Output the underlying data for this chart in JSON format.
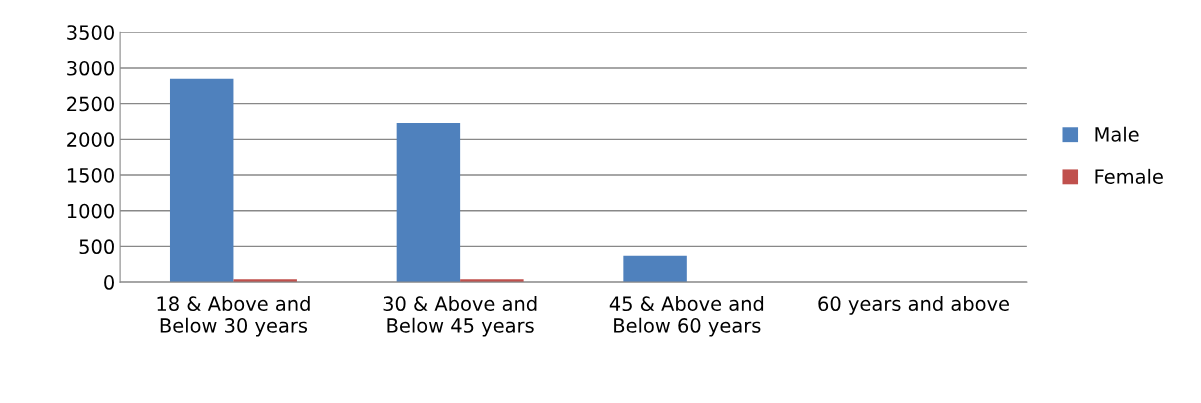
{
  "chart_data": {
    "type": "bar",
    "categories": [
      "18 & Above and\nBelow 30 years",
      "30 & Above and\nBelow 45 years",
      "45 & Above and\nBelow 60 years",
      "60 years and above"
    ],
    "series": [
      {
        "name": "Male",
        "color": "#4f81bd",
        "values": [
          2850,
          2230,
          370,
          0
        ]
      },
      {
        "name": "Female",
        "color": "#c0504d",
        "values": [
          40,
          40,
          0,
          0
        ]
      }
    ],
    "ylim": [
      0,
      3500
    ],
    "yticks": [
      0,
      500,
      1000,
      1500,
      2000,
      2500,
      3000,
      3500
    ],
    "grid": "y",
    "legend": "right"
  }
}
